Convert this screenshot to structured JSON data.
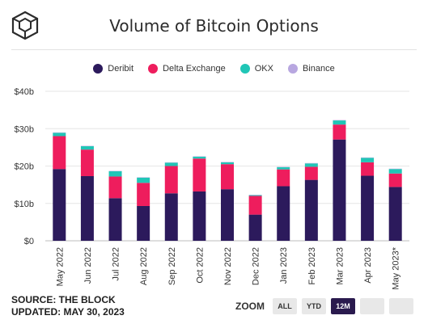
{
  "header": {
    "title": "Volume of Bitcoin Options"
  },
  "legend": [
    {
      "label": "Deribit",
      "color": "#2c1a5c"
    },
    {
      "label": "Delta Exchange",
      "color": "#ee1d5d"
    },
    {
      "label": "OKX",
      "color": "#20c6b6"
    },
    {
      "label": "Binance",
      "color": "#b8a7e0"
    }
  ],
  "chart_data": {
    "type": "bar",
    "stacked": true,
    "categories": [
      "May 2022",
      "Jun 2022",
      "Jul 2022",
      "Aug 2022",
      "Sep 2022",
      "Oct 2022",
      "Nov 2022",
      "Dec 2022",
      "Jan 2023",
      "Feb 2023",
      "Mar 2023",
      "Apr 2023",
      "May 2023*"
    ],
    "series": [
      {
        "name": "Deribit",
        "color": "#2c1a5c",
        "values": [
          19.2,
          17.3,
          11.4,
          9.3,
          12.7,
          13.2,
          13.8,
          7.0,
          14.6,
          16.3,
          27.1,
          17.4,
          14.4
        ]
      },
      {
        "name": "Delta Exchange",
        "color": "#ee1d5d",
        "values": [
          8.8,
          7.1,
          5.8,
          6.2,
          7.3,
          8.8,
          6.7,
          5.0,
          4.5,
          3.5,
          4.0,
          3.6,
          3.6
        ]
      },
      {
        "name": "OKX",
        "color": "#20c6b6",
        "values": [
          0.9,
          0.9,
          1.4,
          1.4,
          0.9,
          0.5,
          0.5,
          0.2,
          0.6,
          0.9,
          1.1,
          1.2,
          1.2
        ]
      },
      {
        "name": "Binance",
        "color": "#b8a7e0",
        "values": [
          0.1,
          0.1,
          0.1,
          0.1,
          0.1,
          0.1,
          0.1,
          0.1,
          0.1,
          0.1,
          0.1,
          0.1,
          0.1
        ]
      }
    ],
    "yticks": [
      "$0",
      "$10b",
      "$20b",
      "$30b",
      "$40b"
    ],
    "ylim": [
      0,
      40
    ],
    "grid": true,
    "legend_position": "top"
  },
  "footer": {
    "source": "SOURCE: THE BLOCK",
    "updated": "UPDATED: MAY 30, 2023"
  },
  "zoom": {
    "label": "ZOOM",
    "buttons": [
      {
        "label": "ALL",
        "active": false
      },
      {
        "label": "YTD",
        "active": false
      },
      {
        "label": "12M",
        "active": true
      },
      {
        "label": "",
        "active": false
      },
      {
        "label": "",
        "active": false
      }
    ]
  }
}
